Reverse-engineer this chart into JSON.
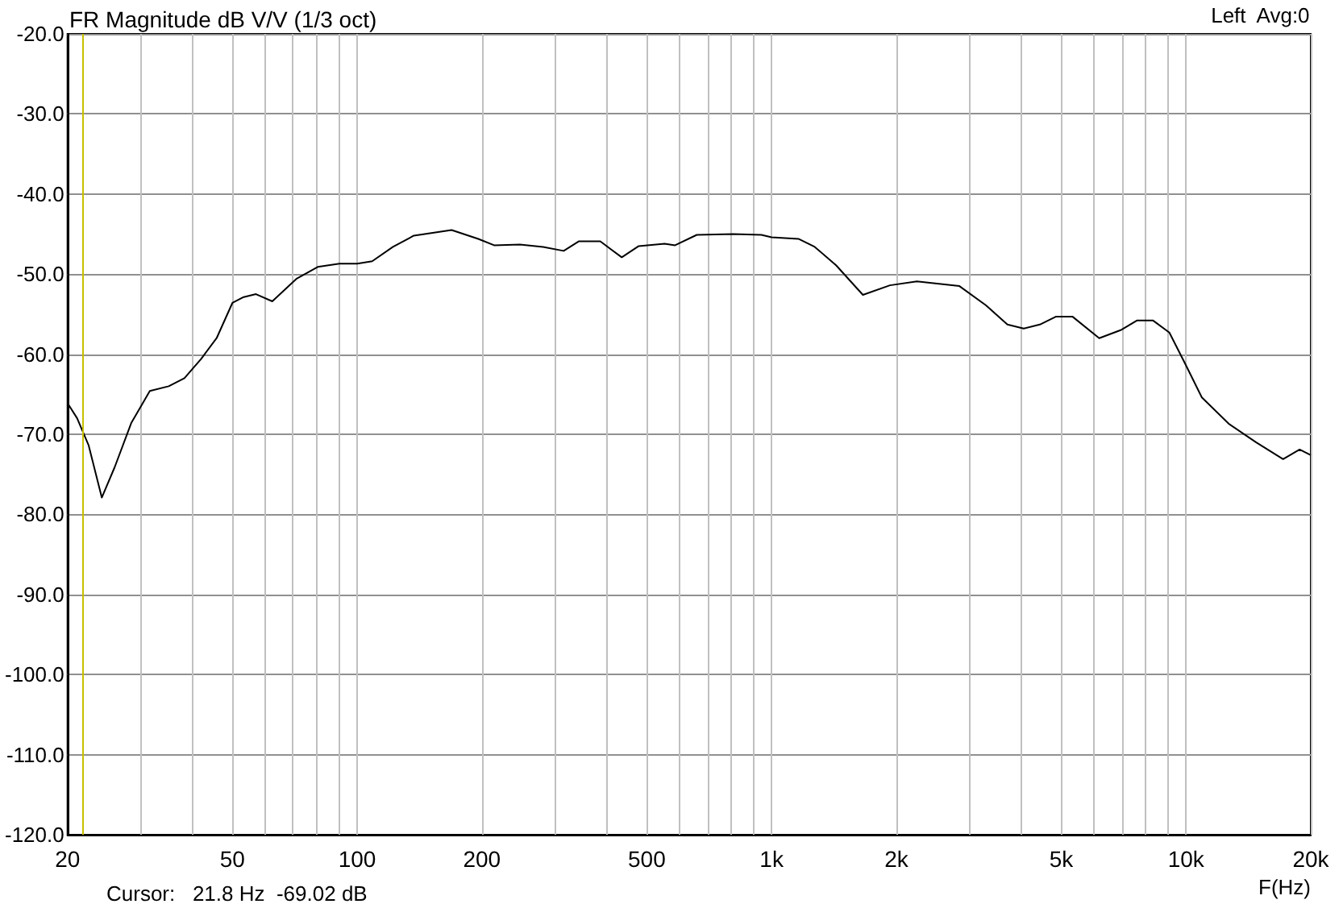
{
  "chart_data": {
    "type": "line",
    "title": "FR Magnitude dB V/V (1/3 oct)",
    "xlabel": "F(Hz)",
    "annotations": [
      "Left  Avg:0",
      "Cursor:   21.8 Hz  -69.02 dB"
    ],
    "log": "x",
    "grid": true,
    "marker": "none",
    "line_style": "solid",
    "xlim": [
      20,
      20000
    ],
    "xticks": [
      20,
      {
        "value": 30,
        "label": null
      },
      {
        "value": 40,
        "label": null
      },
      50,
      {
        "value": 60,
        "label": null
      },
      {
        "value": 70,
        "label": null
      },
      {
        "value": 80,
        "label": null
      },
      {
        "value": 90,
        "label": null
      },
      100,
      200,
      {
        "value": 300,
        "label": null
      },
      {
        "value": 400,
        "label": null
      },
      500,
      {
        "value": 600,
        "label": null
      },
      {
        "value": 700,
        "label": null
      },
      {
        "value": 800,
        "label": null
      },
      {
        "value": 900,
        "label": null
      },
      {
        "value": 1000,
        "label": "1k"
      },
      {
        "value": 2000,
        "label": "2k"
      },
      {
        "value": 3000,
        "label": null
      },
      {
        "value": 4000,
        "label": null
      },
      {
        "value": 5000,
        "label": "5k"
      },
      {
        "value": 6000,
        "label": null
      },
      {
        "value": 7000,
        "label": null
      },
      {
        "value": 8000,
        "label": null
      },
      {
        "value": 9000,
        "label": null
      },
      {
        "value": 10000,
        "label": "10k"
      },
      {
        "value": 20000,
        "label": "20k"
      }
    ],
    "ylim": [
      -120,
      -20
    ],
    "yticks": [
      {
        "value": -120,
        "label": "-120.0"
      },
      {
        "value": -110,
        "label": "-110.0"
      },
      {
        "value": -100,
        "label": "-100.0"
      },
      {
        "value": -90,
        "label": "-90.0"
      },
      {
        "value": -80,
        "label": "-80.0"
      },
      {
        "value": -70,
        "label": "-70.0"
      },
      {
        "value": -60,
        "label": "-60.0"
      },
      {
        "value": -50,
        "label": "-50.0"
      },
      {
        "value": -40,
        "label": "-40.0"
      },
      {
        "value": -30,
        "label": "-30.0"
      },
      {
        "value": -20,
        "label": "-20.0"
      }
    ],
    "ref_lines": [
      {
        "axis": "x",
        "value": 21.8,
        "color": "#c8c000"
      }
    ],
    "series": [
      {
        "color": "#000000",
        "x": [
          20,
          21.1,
          22.5,
          24.2,
          26,
          28.5,
          31.6,
          35.1,
          38.3,
          42,
          45.8,
          50,
          53,
          57,
          62.4,
          71.3,
          80.3,
          90.6,
          100,
          108.7,
          122,
          137,
          169,
          196,
          214,
          247,
          281,
          315,
          343,
          386,
          435,
          478,
          552,
          585,
          660,
          809,
          945,
          1000,
          1161,
          1271,
          1431,
          1661,
          1930,
          2242,
          2840,
          3292,
          3707,
          4057,
          4440,
          4860,
          5319,
          6174,
          6953,
          7610,
          8330,
          9117,
          9977,
          10920,
          12690,
          14750,
          17150,
          18800,
          20000
        ],
        "values": [
          -66.1,
          -68.0,
          -71.4,
          -77.9,
          -74.1,
          -68.6,
          -64.6,
          -64.0,
          -63.0,
          -60.6,
          -58.0,
          -53.6,
          -52.9,
          -52.5,
          -53.4,
          -50.6,
          -49.1,
          -48.7,
          -48.7,
          -48.4,
          -46.6,
          -45.2,
          -44.5,
          -45.6,
          -46.4,
          -46.3,
          -46.6,
          -47.1,
          -45.9,
          -45.9,
          -47.9,
          -46.5,
          -46.2,
          -46.4,
          -45.1,
          -45.0,
          -45.1,
          -45.4,
          -45.6,
          -46.6,
          -48.9,
          -52.6,
          -51.4,
          -50.9,
          -51.5,
          -53.9,
          -56.3,
          -56.8,
          -56.3,
          -55.3,
          -55.3,
          -58.0,
          -57.0,
          -55.8,
          -55.8,
          -57.3,
          -61.3,
          -65.4,
          -68.7,
          -71.0,
          -73.1,
          -71.9,
          -72.6
        ]
      }
    ]
  }
}
